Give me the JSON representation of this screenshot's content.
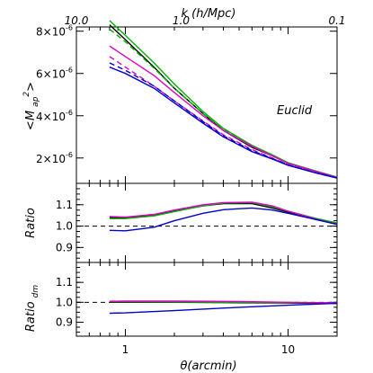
{
  "chart_data": {
    "type": "line",
    "top_axis": {
      "label": "k (h/Mpc)",
      "ticks": [
        {
          "label": "10.0",
          "theta": 0.5
        },
        {
          "label": "1.0",
          "theta": 2.2
        },
        {
          "label": "0.1",
          "theta": 20
        }
      ]
    },
    "bottom_axis": {
      "label": "θ(arcmin)",
      "scale": "log",
      "range": [
        0.5,
        20
      ],
      "ticks": [
        {
          "label": "1",
          "value": 1
        },
        {
          "label": "10",
          "value": 10
        }
      ]
    },
    "annotation": "Euclid",
    "panels": [
      {
        "id": "map2",
        "ylabel": "<M_ap^2>",
        "ylim": [
          8e-07,
          8.2e-06
        ],
        "yticks": [
          {
            "label_mant": "2×10",
            "label_exp": "-6",
            "value": 2e-06
          },
          {
            "label_mant": "4×10",
            "label_exp": "-6",
            "value": 4e-06
          },
          {
            "label_mant": "6×10",
            "label_exp": "-6",
            "value": 6e-06
          },
          {
            "label_mant": "8×10",
            "label_exp": "-6",
            "value": 8e-06
          }
        ],
        "series": [
          {
            "color": "#000000",
            "dash": "solid",
            "points": [
              [
                0.8,
                8.3e-06
              ],
              [
                1,
                7.6e-06
              ],
              [
                1.5,
                6.3e-06
              ],
              [
                2,
                5.3e-06
              ],
              [
                3,
                4.1e-06
              ],
              [
                4,
                3.3e-06
              ],
              [
                6,
                2.5e-06
              ],
              [
                8,
                2.1e-06
              ],
              [
                10,
                1.75e-06
              ],
              [
                15,
                1.35e-06
              ],
              [
                20,
                1.08e-06
              ]
            ]
          },
          {
            "color": "#00b000",
            "dash": "solid",
            "points": [
              [
                0.8,
                8.5e-06
              ],
              [
                1,
                7.8e-06
              ],
              [
                1.5,
                6.5e-06
              ],
              [
                2,
                5.5e-06
              ],
              [
                3,
                4.2e-06
              ],
              [
                4,
                3.4e-06
              ],
              [
                6,
                2.6e-06
              ],
              [
                8,
                2.15e-06
              ],
              [
                10,
                1.78e-06
              ],
              [
                15,
                1.37e-06
              ],
              [
                20,
                1.1e-06
              ]
            ]
          },
          {
            "color": "#00b000",
            "dash": "dash",
            "points": [
              [
                0.8,
                8.1e-06
              ],
              [
                1,
                7.5e-06
              ],
              [
                1.5,
                6.25e-06
              ],
              [
                2,
                5.3e-06
              ],
              [
                3,
                4.1e-06
              ],
              [
                4,
                3.35e-06
              ],
              [
                6,
                2.55e-06
              ],
              [
                8,
                2.12e-06
              ],
              [
                10,
                1.76e-06
              ],
              [
                15,
                1.35e-06
              ],
              [
                20,
                1.08e-06
              ]
            ]
          },
          {
            "color": "#e000c8",
            "dash": "solid",
            "points": [
              [
                0.8,
                7.3e-06
              ],
              [
                1,
                6.8e-06
              ],
              [
                1.5,
                5.9e-06
              ],
              [
                2,
                5.1e-06
              ],
              [
                3,
                4e-06
              ],
              [
                4,
                3.3e-06
              ],
              [
                6,
                2.55e-06
              ],
              [
                8,
                2.1e-06
              ],
              [
                10,
                1.75e-06
              ],
              [
                15,
                1.35e-06
              ],
              [
                20,
                1.08e-06
              ]
            ]
          },
          {
            "color": "#e000c8",
            "dash": "dash",
            "points": [
              [
                0.8,
                6.8e-06
              ],
              [
                1,
                6.3e-06
              ],
              [
                1.5,
                5.4e-06
              ],
              [
                2,
                4.7e-06
              ],
              [
                3,
                3.75e-06
              ],
              [
                4,
                3.1e-06
              ],
              [
                6,
                2.4e-06
              ],
              [
                8,
                2e-06
              ],
              [
                10,
                1.68e-06
              ],
              [
                15,
                1.3e-06
              ],
              [
                20,
                1.06e-06
              ]
            ]
          },
          {
            "color": "#0000cc",
            "dash": "solid",
            "points": [
              [
                0.8,
                6.3e-06
              ],
              [
                1,
                6e-06
              ],
              [
                1.5,
                5.3e-06
              ],
              [
                2,
                4.6e-06
              ],
              [
                3,
                3.65e-06
              ],
              [
                4,
                3e-06
              ],
              [
                6,
                2.3e-06
              ],
              [
                8,
                1.95e-06
              ],
              [
                10,
                1.65e-06
              ],
              [
                15,
                1.28e-06
              ],
              [
                20,
                1.05e-06
              ]
            ]
          },
          {
            "color": "#0000cc",
            "dash": "dash",
            "points": [
              [
                0.8,
                6.5e-06
              ],
              [
                1,
                6.15e-06
              ],
              [
                1.5,
                5.4e-06
              ],
              [
                2,
                4.7e-06
              ],
              [
                3,
                3.72e-06
              ],
              [
                4,
                3.05e-06
              ],
              [
                6,
                2.35e-06
              ],
              [
                8,
                1.98e-06
              ],
              [
                10,
                1.67e-06
              ],
              [
                15,
                1.29e-06
              ],
              [
                20,
                1.05e-06
              ]
            ]
          }
        ]
      },
      {
        "id": "ratio",
        "ylabel": "Ratio",
        "ylim": [
          0.83,
          1.2
        ],
        "yticks": [
          {
            "label": "0.9",
            "value": 0.9
          },
          {
            "label": "1.0",
            "value": 1.0
          },
          {
            "label": "1.1",
            "value": 1.1
          }
        ],
        "reference": 1.0,
        "series": [
          {
            "color": "#000000",
            "dash": "solid",
            "points": [
              [
                0.8,
                1.04
              ],
              [
                1,
                1.038
              ],
              [
                1.5,
                1.05
              ],
              [
                2,
                1.07
              ],
              [
                3,
                1.095
              ],
              [
                4,
                1.105
              ],
              [
                6,
                1.105
              ],
              [
                8,
                1.085
              ],
              [
                10,
                1.065
              ],
              [
                15,
                1.03
              ],
              [
                20,
                1.01
              ]
            ]
          },
          {
            "color": "#00b000",
            "dash": "solid",
            "points": [
              [
                0.8,
                1.035
              ],
              [
                1,
                1.035
              ],
              [
                1.5,
                1.048
              ],
              [
                2,
                1.068
              ],
              [
                3,
                1.095
              ],
              [
                4,
                1.108
              ],
              [
                6,
                1.11
              ],
              [
                8,
                1.09
              ],
              [
                10,
                1.07
              ],
              [
                15,
                1.035
              ],
              [
                20,
                1.015
              ]
            ]
          },
          {
            "color": "#e000c8",
            "dash": "solid",
            "points": [
              [
                0.8,
                1.045
              ],
              [
                1,
                1.042
              ],
              [
                1.5,
                1.055
              ],
              [
                2,
                1.075
              ],
              [
                3,
                1.1
              ],
              [
                4,
                1.11
              ],
              [
                6,
                1.112
              ],
              [
                8,
                1.095
              ],
              [
                10,
                1.07
              ],
              [
                15,
                1.032
              ],
              [
                20,
                1.008
              ]
            ]
          },
          {
            "color": "#0000cc",
            "dash": "solid",
            "points": [
              [
                0.8,
                0.98
              ],
              [
                1,
                0.978
              ],
              [
                1.5,
                0.995
              ],
              [
                2,
                1.025
              ],
              [
                3,
                1.06
              ],
              [
                4,
                1.077
              ],
              [
                6,
                1.085
              ],
              [
                8,
                1.075
              ],
              [
                10,
                1.06
              ],
              [
                15,
                1.03
              ],
              [
                20,
                1.008
              ]
            ]
          }
        ]
      },
      {
        "id": "ratio_dm",
        "ylabel": "Ratio_dm",
        "ylim": [
          0.83,
          1.2
        ],
        "yticks": [
          {
            "label": "0.9",
            "value": 0.9
          },
          {
            "label": "1.0",
            "value": 1.0
          },
          {
            "label": "1.1",
            "value": 1.1
          }
        ],
        "reference": 1.0,
        "series": [
          {
            "color": "#000000",
            "dash": "solid",
            "points": [
              [
                0.8,
                1.0
              ],
              [
                1,
                1.0
              ],
              [
                2,
                1.0
              ],
              [
                5,
                0.998
              ],
              [
                10,
                0.996
              ],
              [
                20,
                0.994
              ]
            ]
          },
          {
            "color": "#00b000",
            "dash": "solid",
            "points": [
              [
                0.8,
                1.003
              ],
              [
                1,
                1.003
              ],
              [
                2,
                1.002
              ],
              [
                5,
                1.0
              ],
              [
                10,
                0.998
              ],
              [
                20,
                0.996
              ]
            ]
          },
          {
            "color": "#e000c8",
            "dash": "solid",
            "points": [
              [
                0.8,
                1.005
              ],
              [
                1,
                1.006
              ],
              [
                2,
                1.006
              ],
              [
                5,
                1.004
              ],
              [
                10,
                1.0
              ],
              [
                20,
                0.997
              ]
            ]
          },
          {
            "color": "#0000cc",
            "dash": "solid",
            "points": [
              [
                0.8,
                0.945
              ],
              [
                1,
                0.947
              ],
              [
                2,
                0.958
              ],
              [
                5,
                0.975
              ],
              [
                10,
                0.985
              ],
              [
                20,
                0.995
              ]
            ]
          }
        ]
      }
    ]
  }
}
